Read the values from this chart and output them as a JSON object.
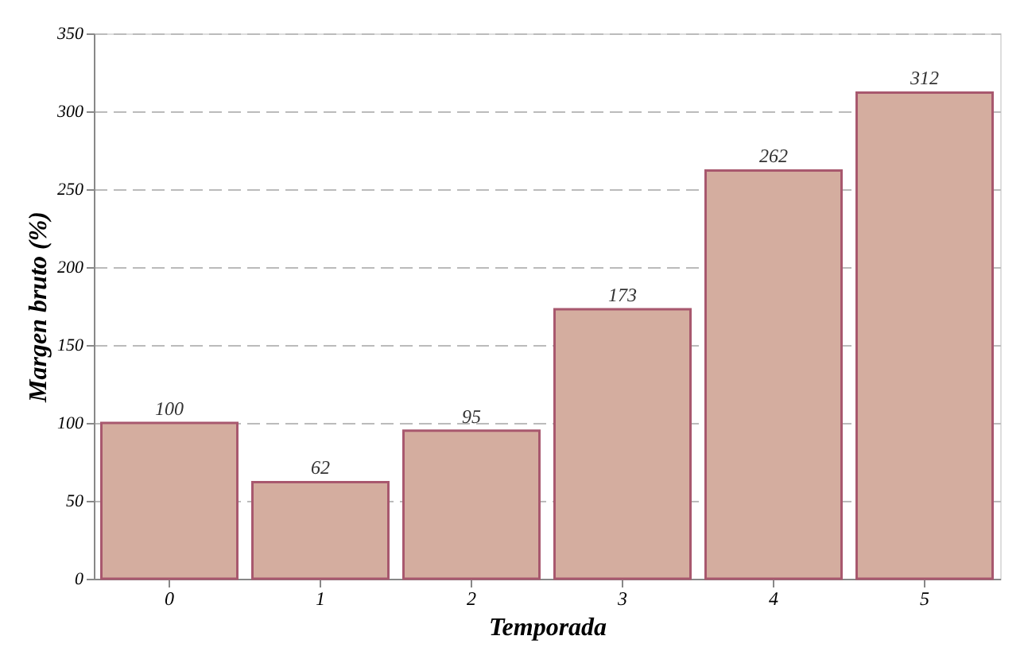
{
  "chart_data": {
    "type": "bar",
    "xlabel": "Temporada",
    "ylabel": "Margen bruto (%)",
    "categories": [
      "0",
      "1",
      "2",
      "3",
      "4",
      "5"
    ],
    "values": [
      100,
      62,
      95,
      173,
      262,
      312
    ],
    "color": "#d4ad9f",
    "ylim": [
      0,
      350
    ],
    "yticks": [
      0,
      50,
      100,
      150,
      200,
      250,
      300,
      350
    ],
    "grid": "y",
    "data_labels": true
  }
}
